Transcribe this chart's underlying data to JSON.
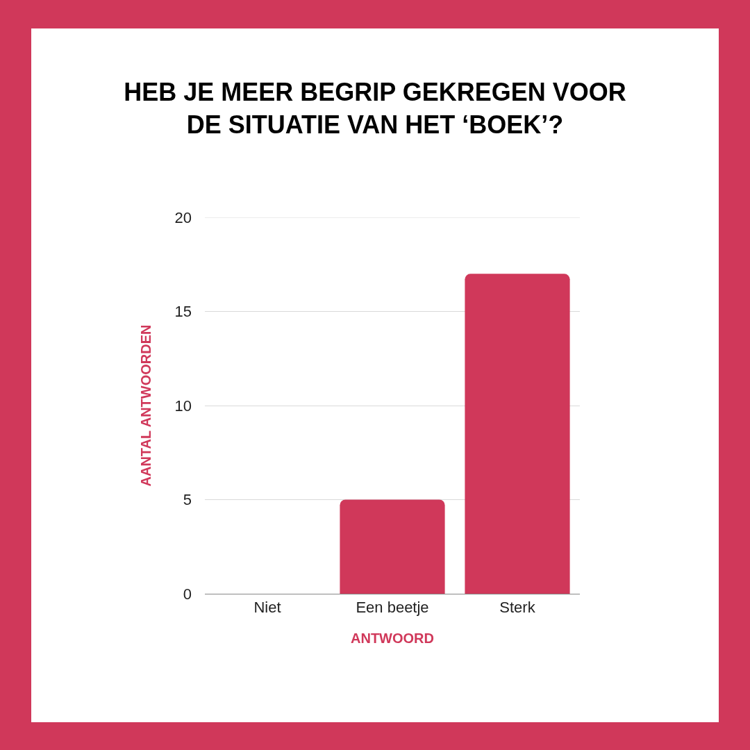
{
  "chart_data": {
    "type": "bar",
    "title": "HEB JE MEER BEGRIP GEKREGEN VOOR DE SITUATIE VAN HET ‘BOEK’?",
    "xlabel": "ANTWOORD",
    "ylabel": "AANTAL ANTWOORDEN",
    "categories": [
      "Niet",
      "Een beetje",
      "Sterk"
    ],
    "values": [
      0,
      5,
      17
    ],
    "color": "#d0385a",
    "ylim": [
      0,
      20
    ],
    "yticks": [
      0,
      5,
      10,
      15,
      20
    ],
    "grid": "y"
  }
}
